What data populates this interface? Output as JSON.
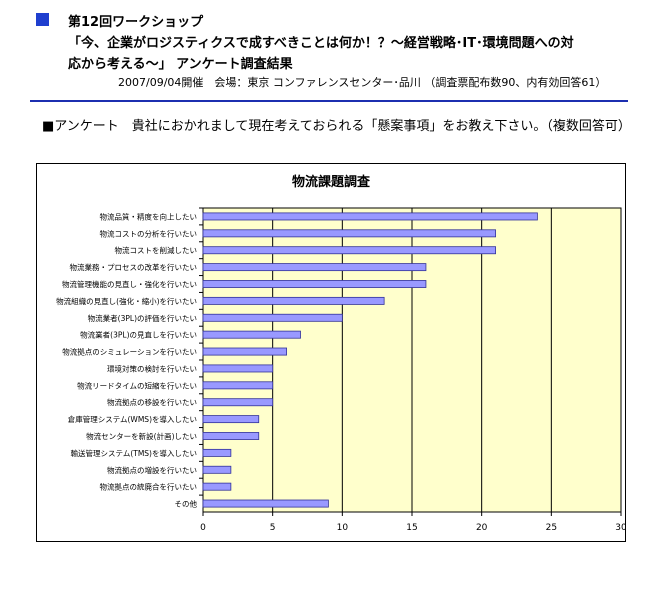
{
  "header": {
    "line1": "第12回ワークショップ",
    "line2": "「今、企業がロジスティクスで成すべきことは何か！？～経営戦略･IT･環境問題への対",
    "line3": "応から考える～」 アンケート調査結果",
    "meta": "2007/09/04開催　会場：東京 コンファレンスセンター･品川 （調査票配布数90、内有効回答61）"
  },
  "question": "■アンケート　貴社におかれまして現在考えておられる「懸案事項」をお教え下さい。（複数回答可）",
  "colors": {
    "accent": "#1f3fcf",
    "plot_bg": "#ffffcc",
    "bar_fill": "#9999ff",
    "bar_edge": "#333399"
  },
  "chart_data": {
    "type": "bar",
    "orientation": "horizontal",
    "title": "物流課題調査",
    "categories": [
      "物流品質・精度を向上したい",
      "物流コストの分析を行いたい",
      "物流コストを削減したい",
      "物流業務・プロセスの改革を行いたい",
      "物流管理機能の見直し・強化を行いたい",
      "物流組織の見直し(強化・縮小)を行いたい",
      "物流業者(3PL)の評価を行いたい",
      "物流業者(3PL)の見直しを行いたい",
      "物流拠点のシミュレーションを行いたい",
      "環境対策の検討を行いたい",
      "物流リードタイムの短縮を行いたい",
      "物流拠点の移設を行いたい",
      "倉庫管理システム(WMS)を導入したい",
      "物流センターを新設(計画)したい",
      "輸送管理システム(TMS)を導入したい",
      "物流拠点の増設を行いたい",
      "物流拠点の統廃合を行いたい",
      "その他"
    ],
    "values": [
      24,
      21,
      21,
      16,
      16,
      13,
      10,
      7,
      6,
      5,
      5,
      5,
      4,
      4,
      2,
      2,
      2,
      9
    ],
    "xlim": [
      0,
      30
    ],
    "xticks": [
      "0",
      "5",
      "10",
      "15",
      "20",
      "25",
      "30"
    ],
    "grid": "vertical",
    "legend": "none"
  }
}
